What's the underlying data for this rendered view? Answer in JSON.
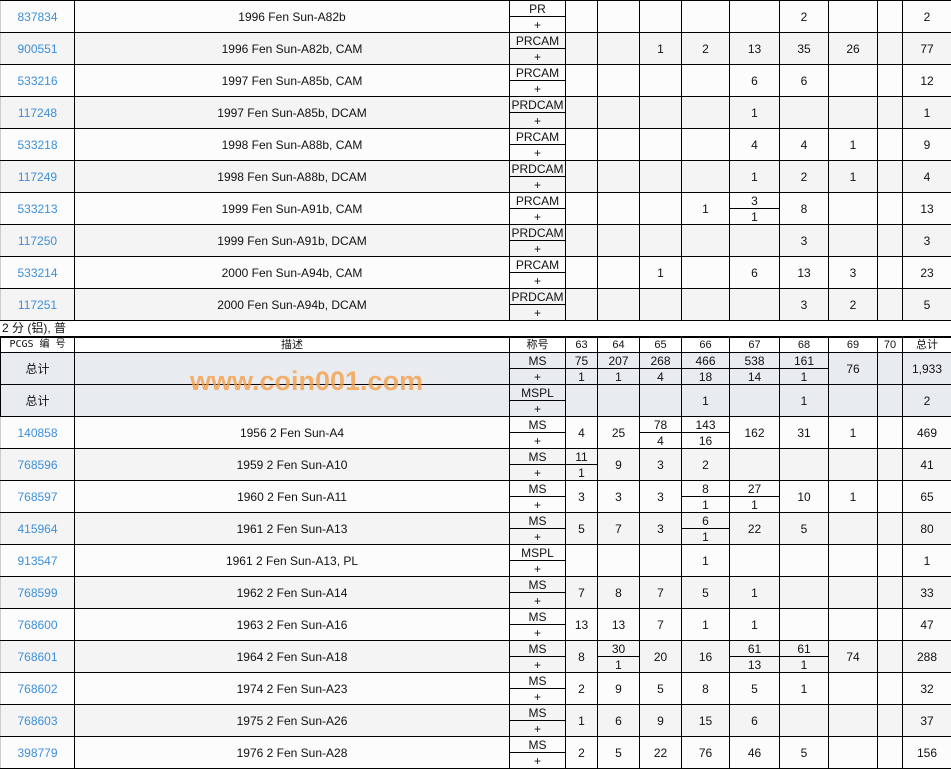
{
  "grades": [
    "63",
    "64",
    "65",
    "66",
    "67",
    "68",
    "69",
    "70"
  ],
  "top_rows": [
    {
      "id": "837834",
      "desc": "1996 Fen Sun-A82b",
      "grade": "PR",
      "plus": "+",
      "cells": [
        "",
        "",
        "",
        "",
        "",
        "2",
        "",
        ""
      ],
      "total": "2"
    },
    {
      "id": "900551",
      "desc": "1996 Fen Sun-A82b, CAM",
      "grade": "PRCAM",
      "plus": "+",
      "cells": [
        "",
        "",
        "1",
        "2",
        "13",
        "35",
        "26",
        ""
      ],
      "total": "77"
    },
    {
      "id": "533216",
      "desc": "1997 Fen Sun-A85b, CAM",
      "grade": "PRCAM",
      "plus": "+",
      "cells": [
        "",
        "",
        "",
        "",
        "6",
        "6",
        "",
        ""
      ],
      "total": "12"
    },
    {
      "id": "117248",
      "desc": "1997 Fen Sun-A85b, DCAM",
      "grade": "PRDCAM",
      "plus": "+",
      "cells": [
        "",
        "",
        "",
        "",
        "1",
        "",
        "",
        ""
      ],
      "total": "1"
    },
    {
      "id": "533218",
      "desc": "1998 Fen Sun-A88b, CAM",
      "grade": "PRCAM",
      "plus": "+",
      "cells": [
        "",
        "",
        "",
        "",
        "4",
        "4",
        "1",
        ""
      ],
      "total": "9"
    },
    {
      "id": "117249",
      "desc": "1998 Fen Sun-A88b, DCAM",
      "grade": "PRDCAM",
      "plus": "+",
      "cells": [
        "",
        "",
        "",
        "",
        "1",
        "2",
        "1",
        ""
      ],
      "total": "4"
    },
    {
      "id": "533213",
      "desc": "1999 Fen Sun-A91b, CAM",
      "grade": "PRCAM",
      "plus": "+",
      "cells": [
        "",
        "",
        "",
        "1",
        [
          "3",
          "1"
        ],
        "8",
        "",
        ""
      ],
      "total": "13"
    },
    {
      "id": "117250",
      "desc": "1999 Fen Sun-A91b, DCAM",
      "grade": "PRDCAM",
      "plus": "+",
      "cells": [
        "",
        "",
        "",
        "",
        "",
        "3",
        "",
        ""
      ],
      "total": "3"
    },
    {
      "id": "533214",
      "desc": "2000 Fen Sun-A94b, CAM",
      "grade": "PRCAM",
      "plus": "+",
      "cells": [
        "",
        "",
        "1",
        "",
        "6",
        "13",
        "3",
        ""
      ],
      "total": "23"
    },
    {
      "id": "117251",
      "desc": "2000 Fen Sun-A94b, DCAM",
      "grade": "PRDCAM",
      "plus": "+",
      "cells": [
        "",
        "",
        "",
        "",
        "",
        "3",
        "2",
        ""
      ],
      "total": "5"
    }
  ],
  "section": {
    "title": "2 分 (铝), 普",
    "headers": {
      "pcgs": "PCGS 编 号",
      "desc": "描述",
      "grade": "称号",
      "total": "总计"
    }
  },
  "total_rows": [
    {
      "id": "总计",
      "desc": "",
      "grade": "MS",
      "plus": "+",
      "cells": [
        [
          "75",
          "1"
        ],
        [
          "207",
          "1"
        ],
        [
          "268",
          "4"
        ],
        [
          "466",
          "18"
        ],
        [
          "538",
          "14"
        ],
        [
          "161",
          "1"
        ],
        "76",
        ""
      ],
      "total": "1,933"
    },
    {
      "id": "总计",
      "desc": "",
      "grade": "MSPL",
      "plus": "+",
      "cells": [
        "",
        "",
        "",
        "1",
        "",
        "1",
        "",
        ""
      ],
      "total": "2"
    }
  ],
  "rows": [
    {
      "id": "140858",
      "desc": "1956 2 Fen Sun-A4",
      "grade": "MS",
      "plus": "+",
      "cells": [
        "4",
        "25",
        [
          "78",
          "4"
        ],
        [
          "143",
          "16"
        ],
        "162",
        "31",
        "1",
        ""
      ],
      "total": "469"
    },
    {
      "id": "768596",
      "desc": "1959 2 Fen Sun-A10",
      "grade": "MS",
      "plus": "+",
      "cells": [
        [
          "11",
          "1"
        ],
        "9",
        "3",
        "2",
        "",
        "",
        "",
        ""
      ],
      "total": "41"
    },
    {
      "id": "768597",
      "desc": "1960 2 Fen Sun-A11",
      "grade": "MS",
      "plus": "+",
      "cells": [
        "3",
        "3",
        "3",
        [
          "8",
          "1"
        ],
        [
          "27",
          "1"
        ],
        "10",
        "1",
        ""
      ],
      "total": "65"
    },
    {
      "id": "415964",
      "desc": "1961 2 Fen Sun-A13",
      "grade": "MS",
      "plus": "+",
      "cells": [
        "5",
        "7",
        "3",
        [
          "6",
          "1"
        ],
        "22",
        "5",
        "",
        ""
      ],
      "total": "80"
    },
    {
      "id": "913547",
      "desc": "1961 2 Fen Sun-A13, PL",
      "grade": "MSPL",
      "plus": "+",
      "cells": [
        "",
        "",
        "",
        "1",
        "",
        "",
        "",
        ""
      ],
      "total": "1"
    },
    {
      "id": "768599",
      "desc": "1962 2 Fen Sun-A14",
      "grade": "MS",
      "plus": "+",
      "cells": [
        "7",
        "8",
        "7",
        "5",
        "1",
        "",
        "",
        ""
      ],
      "total": "33"
    },
    {
      "id": "768600",
      "desc": "1963 2 Fen Sun-A16",
      "grade": "MS",
      "plus": "+",
      "cells": [
        "13",
        "13",
        "7",
        "1",
        "1",
        "",
        "",
        ""
      ],
      "total": "47"
    },
    {
      "id": "768601",
      "desc": "1964 2 Fen Sun-A18",
      "grade": "MS",
      "plus": "+",
      "cells": [
        "8",
        [
          "30",
          "1"
        ],
        "20",
        "16",
        [
          "61",
          "13"
        ],
        [
          "61",
          "1"
        ],
        "74",
        ""
      ],
      "total": "288"
    },
    {
      "id": "768602",
      "desc": "1974 2 Fen Sun-A23",
      "grade": "MS",
      "plus": "+",
      "cells": [
        "2",
        "9",
        "5",
        "8",
        "5",
        "1",
        "",
        ""
      ],
      "total": "32"
    },
    {
      "id": "768603",
      "desc": "1975 2 Fen Sun-A26",
      "grade": "MS",
      "plus": "+",
      "cells": [
        "1",
        "6",
        "9",
        "15",
        "6",
        "",
        "",
        ""
      ],
      "total": "37"
    },
    {
      "id": "398779",
      "desc": "1976 2 Fen Sun-A28",
      "grade": "MS",
      "plus": "+",
      "cells": [
        "2",
        "5",
        "22",
        "76",
        "46",
        "5",
        "",
        ""
      ],
      "total": "156"
    }
  ],
  "watermark": "www.coin001.com",
  "colors": {
    "link": "#3c8fd8",
    "total_row_bg": "#e8ecf0",
    "watermark": "#f5a04a"
  }
}
